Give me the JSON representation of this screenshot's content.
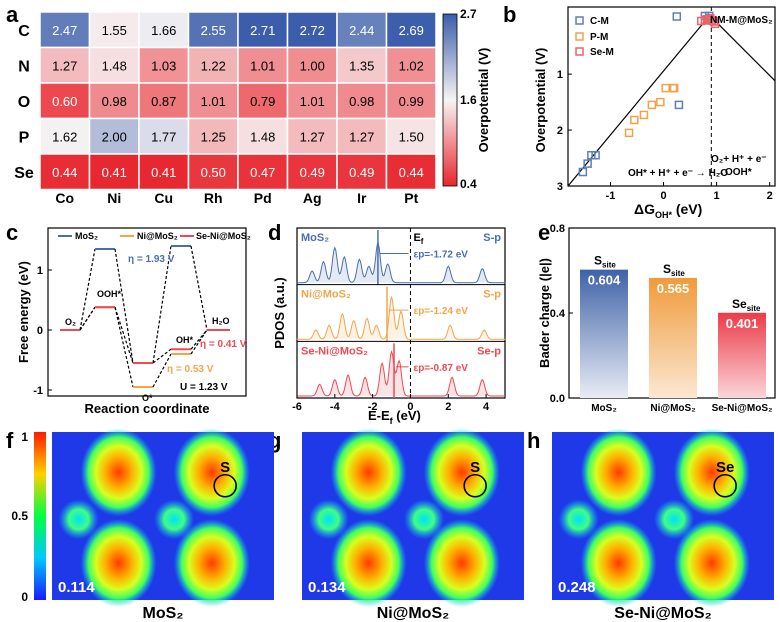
{
  "panels": {
    "a": "a",
    "b": "b",
    "c": "c",
    "d": "d",
    "e": "e",
    "f": "f",
    "g": "g",
    "h": "h"
  },
  "colors": {
    "cm": "#5b7fbd",
    "pm": "#f0a14a",
    "sem": "#e8646a",
    "hmap_high": "#3b5dab",
    "hmap_mid": "#f7f4f4",
    "hmap_low": "#e8262e",
    "bar_mos2": "#4a6fb0",
    "bar_ni": "#f2a54a",
    "bar_se": "#ee4a55"
  },
  "chart_data": [
    {
      "type": "heatmap",
      "panel": "a",
      "rows": [
        "C",
        "N",
        "O",
        "P",
        "Se"
      ],
      "cols": [
        "Co",
        "Ni",
        "Cu",
        "Rh",
        "Pd",
        "Ag",
        "Ir",
        "Pt"
      ],
      "values": [
        [
          2.47,
          1.55,
          1.66,
          2.55,
          2.71,
          2.72,
          2.44,
          2.69
        ],
        [
          1.27,
          1.48,
          1.03,
          1.22,
          1.01,
          1.0,
          1.35,
          1.02
        ],
        [
          0.6,
          0.98,
          0.87,
          1.01,
          0.79,
          1.01,
          0.98,
          0.99
        ],
        [
          1.62,
          2.0,
          1.77,
          1.25,
          1.48,
          1.27,
          1.27,
          1.5
        ],
        [
          0.44,
          0.41,
          0.41,
          0.5,
          0.47,
          0.49,
          0.49,
          0.44
        ]
      ],
      "labels": [
        [
          "2.47",
          "1.55",
          "1.66",
          "2.55",
          "2.71",
          "2.72",
          "2.44",
          "2.69"
        ],
        [
          "1.27",
          "1.48",
          "1.03",
          "1.22",
          "1.01",
          "1.00",
          "1.35",
          "1.02"
        ],
        [
          "0.60",
          "0.98",
          "0.87",
          "1.01",
          "0.79",
          "1.01",
          "0.98",
          "0.99"
        ],
        [
          "1.62",
          "2.00",
          "1.77",
          "1.25",
          "1.48",
          "1.27",
          "1.27",
          "1.50"
        ],
        [
          "0.44",
          "0.41",
          "0.41",
          "0.50",
          "0.47",
          "0.49",
          "0.49",
          "0.44"
        ]
      ],
      "colorbar": {
        "min": 0.4,
        "mid": 1.6,
        "max": 2.7,
        "ticks": [
          "2.7",
          "1.6",
          "0.4"
        ],
        "label": "Overpotential (V)"
      }
    },
    {
      "type": "scatter",
      "panel": "b",
      "xlabel_main": "ΔG",
      "xlabel_sub": "OH*",
      "xlabel_unit": " (eV)",
      "ylabel": "Overpotential (V)",
      "xlim": [
        -1.8,
        2.1
      ],
      "ylim": [
        3,
        -0.2
      ],
      "xticks": [
        -1,
        0,
        1,
        2
      ],
      "xtick_labels": [
        "-1",
        "0",
        "1",
        "2"
      ],
      "yticks": [
        1,
        2,
        3
      ],
      "ytick_labels": [
        "1",
        "2",
        "3"
      ],
      "dashed_x": 0.9,
      "volcano_line": [
        [
          -1.8,
          3.0
        ],
        [
          0.87,
          -0.05
        ],
        [
          2.1,
          1.12
        ]
      ],
      "series": [
        {
          "name": "C-M",
          "points": [
            [
              -1.52,
              2.75
            ],
            [
              -1.43,
              2.6
            ],
            [
              -1.36,
              2.45
            ],
            [
              -1.28,
              2.45
            ],
            [
              0.29,
              1.55
            ],
            [
              0.25,
              -0.03
            ],
            [
              0.78,
              -0.04
            ],
            [
              0.86,
              -0.04
            ]
          ]
        },
        {
          "name": "P-M",
          "points": [
            [
              -0.65,
              2.05
            ],
            [
              -0.55,
              1.82
            ],
            [
              -0.37,
              1.73
            ],
            [
              -0.22,
              1.55
            ],
            [
              -0.06,
              1.5
            ],
            [
              0.04,
              1.25
            ],
            [
              0.18,
              1.25
            ],
            [
              0.2,
              1.25
            ]
          ]
        },
        {
          "name": "Se-M",
          "points": [
            [
              0.71,
              0.05
            ],
            [
              0.78,
              0.03
            ],
            [
              0.82,
              0.02
            ],
            [
              0.86,
              0.04
            ],
            [
              0.91,
              0.04
            ],
            [
              0.95,
              0.06
            ],
            [
              0.97,
              0.1
            ],
            [
              0.88,
              0.0
            ]
          ]
        }
      ],
      "legend": [
        "C-M",
        "P-M",
        "Se-M"
      ],
      "annotations": {
        "top": "NM-M@MoS₂",
        "left": "OH* + H⁺ + e⁻ → H₂O",
        "right1": "O₂+ H⁺ + e⁻",
        "right2": "→OOH*"
      }
    },
    {
      "type": "line",
      "panel": "c",
      "xlabel": "Reaction coordinate",
      "ylabel": "Free energy (eV)",
      "ylim": [
        -1.1,
        1.7
      ],
      "yticks": [
        -1,
        0,
        1
      ],
      "ytick_labels": [
        "-1",
        "0",
        "1"
      ],
      "steps": [
        "O₂",
        "OOH*",
        "O*",
        "OH*",
        "H₂O"
      ],
      "series": [
        {
          "name": "MoS₂",
          "values": [
            0,
            1.35,
            -0.55,
            1.4,
            0
          ]
        },
        {
          "name": "Ni@MoS₂",
          "values": [
            0,
            0.38,
            -0.95,
            -0.4,
            0
          ]
        },
        {
          "name": "Se-Ni@MoS₂",
          "values": [
            0,
            0.38,
            -0.55,
            -0.32,
            0
          ]
        }
      ],
      "legend": [
        "MoS₂",
        "Ni@MoS₂",
        "Se-Ni@MoS₂"
      ],
      "annotations": {
        "eta_mos2": "η = 1.93 V",
        "eta_ni": "η = 0.53 V",
        "eta_se": "η = 0.41 V",
        "U": "U = 1.23 V"
      }
    },
    {
      "type": "area",
      "panel": "d",
      "xlabel": "E-E",
      "xlabel_sub": "f",
      "xlabel_unit": " (eV)",
      "ylabel": "PDOS (a.u.)",
      "xlim": [
        -6,
        5
      ],
      "xticks": [
        -6,
        -4,
        -2,
        0,
        2,
        4
      ],
      "xtick_labels": [
        "-6",
        "-4",
        "-2",
        "0",
        "2",
        "4"
      ],
      "ef_label": "E",
      "ef_sub": "f",
      "subpanels": [
        {
          "name": "MoS₂",
          "orbital": "S-p",
          "eps_label": "ε",
          "eps_value": "p=-1.72 eV",
          "eps_x": -1.72
        },
        {
          "name": "Ni@MoS₂",
          "orbital": "S-p",
          "eps_label": "ε",
          "eps_value": "p=-1.24 eV",
          "eps_x": -1.24
        },
        {
          "name": "Se-Ni@MoS₂",
          "orbital": "Se-p",
          "eps_label": "ε",
          "eps_value": "p=-0.87 eV",
          "eps_x": -0.87
        }
      ]
    },
    {
      "type": "bar",
      "panel": "e",
      "categories": [
        "MoS₂",
        "Ni@MoS₂",
        "Se-Ni@MoS₂"
      ],
      "values": [
        0.604,
        0.565,
        0.401
      ],
      "value_labels": [
        "0.604",
        "0.565",
        "0.401"
      ],
      "site_labels": [
        "S",
        "S",
        "Se"
      ],
      "site_sub": "site",
      "ylabel": "Bader charge (|e|)",
      "ylim": [
        0,
        0.8
      ],
      "yticks": [
        0,
        0.4,
        0.8
      ],
      "ytick_labels": [
        "0.0",
        "0.4",
        "0.8"
      ]
    }
  ],
  "elf_maps": [
    {
      "panel": "f",
      "value": "0.114",
      "atom": "S",
      "caption": "MoS₂"
    },
    {
      "panel": "g",
      "value": "0.134",
      "atom": "S",
      "caption": "Ni@MoS₂"
    },
    {
      "panel": "h",
      "value": "0.248",
      "atom": "Se",
      "caption": "Se-Ni@MoS₂"
    }
  ],
  "elf_colorbar": {
    "ticks": [
      "1",
      "0.5",
      "0"
    ]
  }
}
